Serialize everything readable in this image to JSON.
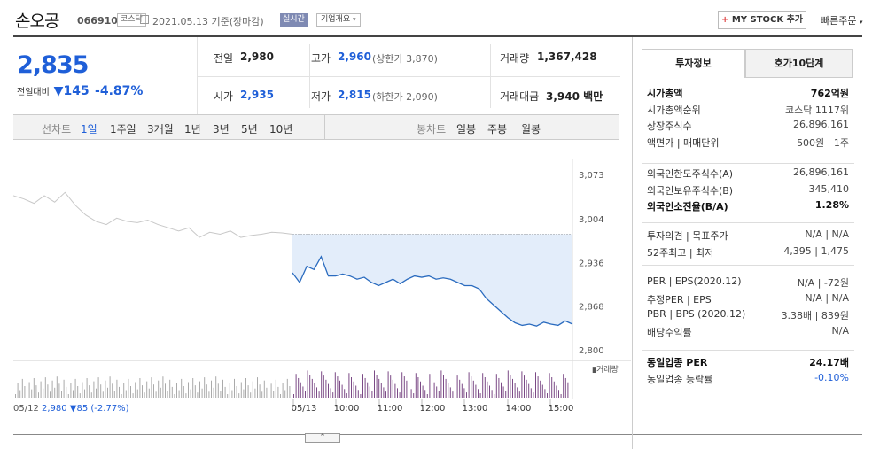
{
  "header": {
    "name": "손오공",
    "code": "066910",
    "market": "코스닥",
    "date": "2021.05.13 기준(장마감)",
    "realtime": "실시간",
    "company_overview": "기업개요",
    "mystock": "MY STOCK 추가",
    "quick_order": "빠른주문"
  },
  "quote": {
    "price": "2,835",
    "change_label": "전일대비",
    "change": "145",
    "change_pct": "-4.87%",
    "prev_label": "전일",
    "prev": "2,980",
    "open_label": "시가",
    "open": "2,935",
    "high_label": "고가",
    "high": "2,960",
    "upper": "(상한가 3,870)",
    "low_label": "저가",
    "low": "2,815",
    "lower": "(하한가 2,090)",
    "volume_label": "거래량",
    "volume": "1,367,428",
    "amount_label": "거래대금",
    "amount": "3,940",
    "amount_unit": "백만"
  },
  "tabs": {
    "line_label": "선차트",
    "periods": [
      "1일",
      "1주일",
      "3개월",
      "1년",
      "3년",
      "5년",
      "10년"
    ],
    "candle_label": "봉차트",
    "candles": [
      "일봉",
      "주봉",
      "월봉"
    ]
  },
  "chart_data": {
    "type": "line",
    "ylim": [
      2800,
      3073
    ],
    "y_ticks": [
      "3,073",
      "3,004",
      "2,936",
      "2,868",
      "2,800"
    ],
    "x_ticks": [
      "05/13",
      "10:00",
      "11:00",
      "12:00",
      "13:00",
      "14:00",
      "15:00"
    ],
    "prev_day_label": "05/12",
    "prev_close": 2980,
    "prev_day_summary": "2,980 ▼85 (-2.77%)",
    "volume_label": "거래량",
    "series": [
      {
        "values": [
          3040,
          3035,
          3028,
          3040,
          3030,
          3045,
          3025,
          3010,
          3000,
          2995,
          3005,
          3000,
          2998,
          3002,
          2995,
          2990,
          2985,
          2990,
          2975,
          2983,
          2980,
          2985,
          2975,
          2978,
          2980,
          2983,
          2982,
          2980
        ]
      },
      {
        "values": [
          2920,
          2905,
          2930,
          2925,
          2945,
          2915,
          2915,
          2918,
          2915,
          2910,
          2913,
          2905,
          2900,
          2905,
          2910,
          2903,
          2910,
          2915,
          2913,
          2915,
          2910,
          2912,
          2910,
          2905,
          2900,
          2900,
          2895,
          2880,
          2870,
          2860,
          2850,
          2842,
          2838,
          2840,
          2837,
          2843,
          2840,
          2838,
          2845,
          2840
        ]
      }
    ]
  },
  "invest": {
    "tab1": "투자정보",
    "tab2": "호가10단계",
    "rows1": [
      {
        "label": "시가총액",
        "value": "762억원"
      },
      {
        "label": "시가총액순위",
        "value": "코스닥 1117위"
      },
      {
        "label": "상장주식수",
        "value": "26,896,161"
      },
      {
        "label": "액면가 | 매매단위",
        "value": "500원 | 1주"
      }
    ],
    "rows2": [
      {
        "label": "외국인한도주식수(A)",
        "value": "26,896,161"
      },
      {
        "label": "외국인보유주식수(B)",
        "value": "345,410"
      },
      {
        "label": "외국인소진율(B/A)",
        "value": "1.28%"
      }
    ],
    "rows3": [
      {
        "label": "투자의견 | 목표주가",
        "value": "N/A | N/A"
      },
      {
        "label": "52주최고 | 최저",
        "value": "4,395 | 1,475"
      }
    ],
    "rows4": [
      {
        "label": "PER | EPS(2020.12)",
        "value": "N/A | -72원"
      },
      {
        "label": "추정PER | EPS",
        "value": "N/A | N/A"
      },
      {
        "label": "PBR | BPS (2020.12)",
        "value": "3.38배 | 839원"
      },
      {
        "label": "배당수익률",
        "value": "N/A"
      }
    ],
    "rows5": [
      {
        "label": "동일업종 PER",
        "value": "24.17배"
      },
      {
        "label": "동일업종 등락률",
        "value": "-0.10%"
      }
    ]
  }
}
